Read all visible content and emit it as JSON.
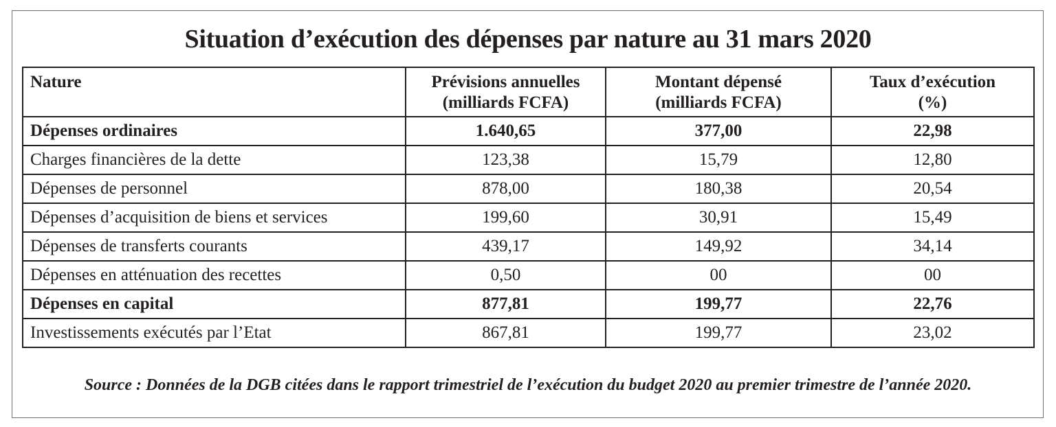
{
  "title": "Situation d’exécution des dépenses par nature au 31 mars 2020",
  "table": {
    "headers": {
      "nature": "Nature",
      "previsions_line1": "Prévisions annuelles",
      "previsions_line2": "(milliards FCFA)",
      "montant_line1": "Montant dépensé",
      "montant_line2": "(milliards FCFA)",
      "taux_line1": "Taux d’exécution",
      "taux_line2": "(%)"
    },
    "rows": [
      {
        "nature": "Dépenses ordinaires",
        "previsions": "1.640,65",
        "montant": "377,00",
        "taux": "22,98",
        "bold": true
      },
      {
        "nature": "Charges financières de la dette",
        "previsions": "123,38",
        "montant": "15,79",
        "taux": "12,80",
        "bold": false
      },
      {
        "nature": "Dépenses de personnel",
        "previsions": "878,00",
        "montant": "180,38",
        "taux": "20,54",
        "bold": false
      },
      {
        "nature": "Dépenses d’acquisition de biens et services",
        "previsions": "199,60",
        "montant": "30,91",
        "taux": "15,49",
        "bold": false
      },
      {
        "nature": "Dépenses de transferts courants",
        "previsions": "439,17",
        "montant": "149,92",
        "taux": "34,14",
        "bold": false
      },
      {
        "nature": "Dépenses en atténuation des recettes",
        "previsions": "0,50",
        "montant": "00",
        "taux": "00",
        "bold": false
      },
      {
        "nature": "Dépenses en capital",
        "previsions": "877,81",
        "montant": "199,77",
        "taux": "22,76",
        "bold": true
      },
      {
        "nature": "Investissements exécutés par l’Etat",
        "previsions": "867,81",
        "montant": "199,77",
        "taux": "23,02",
        "bold": false
      }
    ]
  },
  "source": "Source : Données de la DGB citées dans le rapport trimestriel de l’exécution du budget 2020 au premier trimestre de l’année 2020."
}
